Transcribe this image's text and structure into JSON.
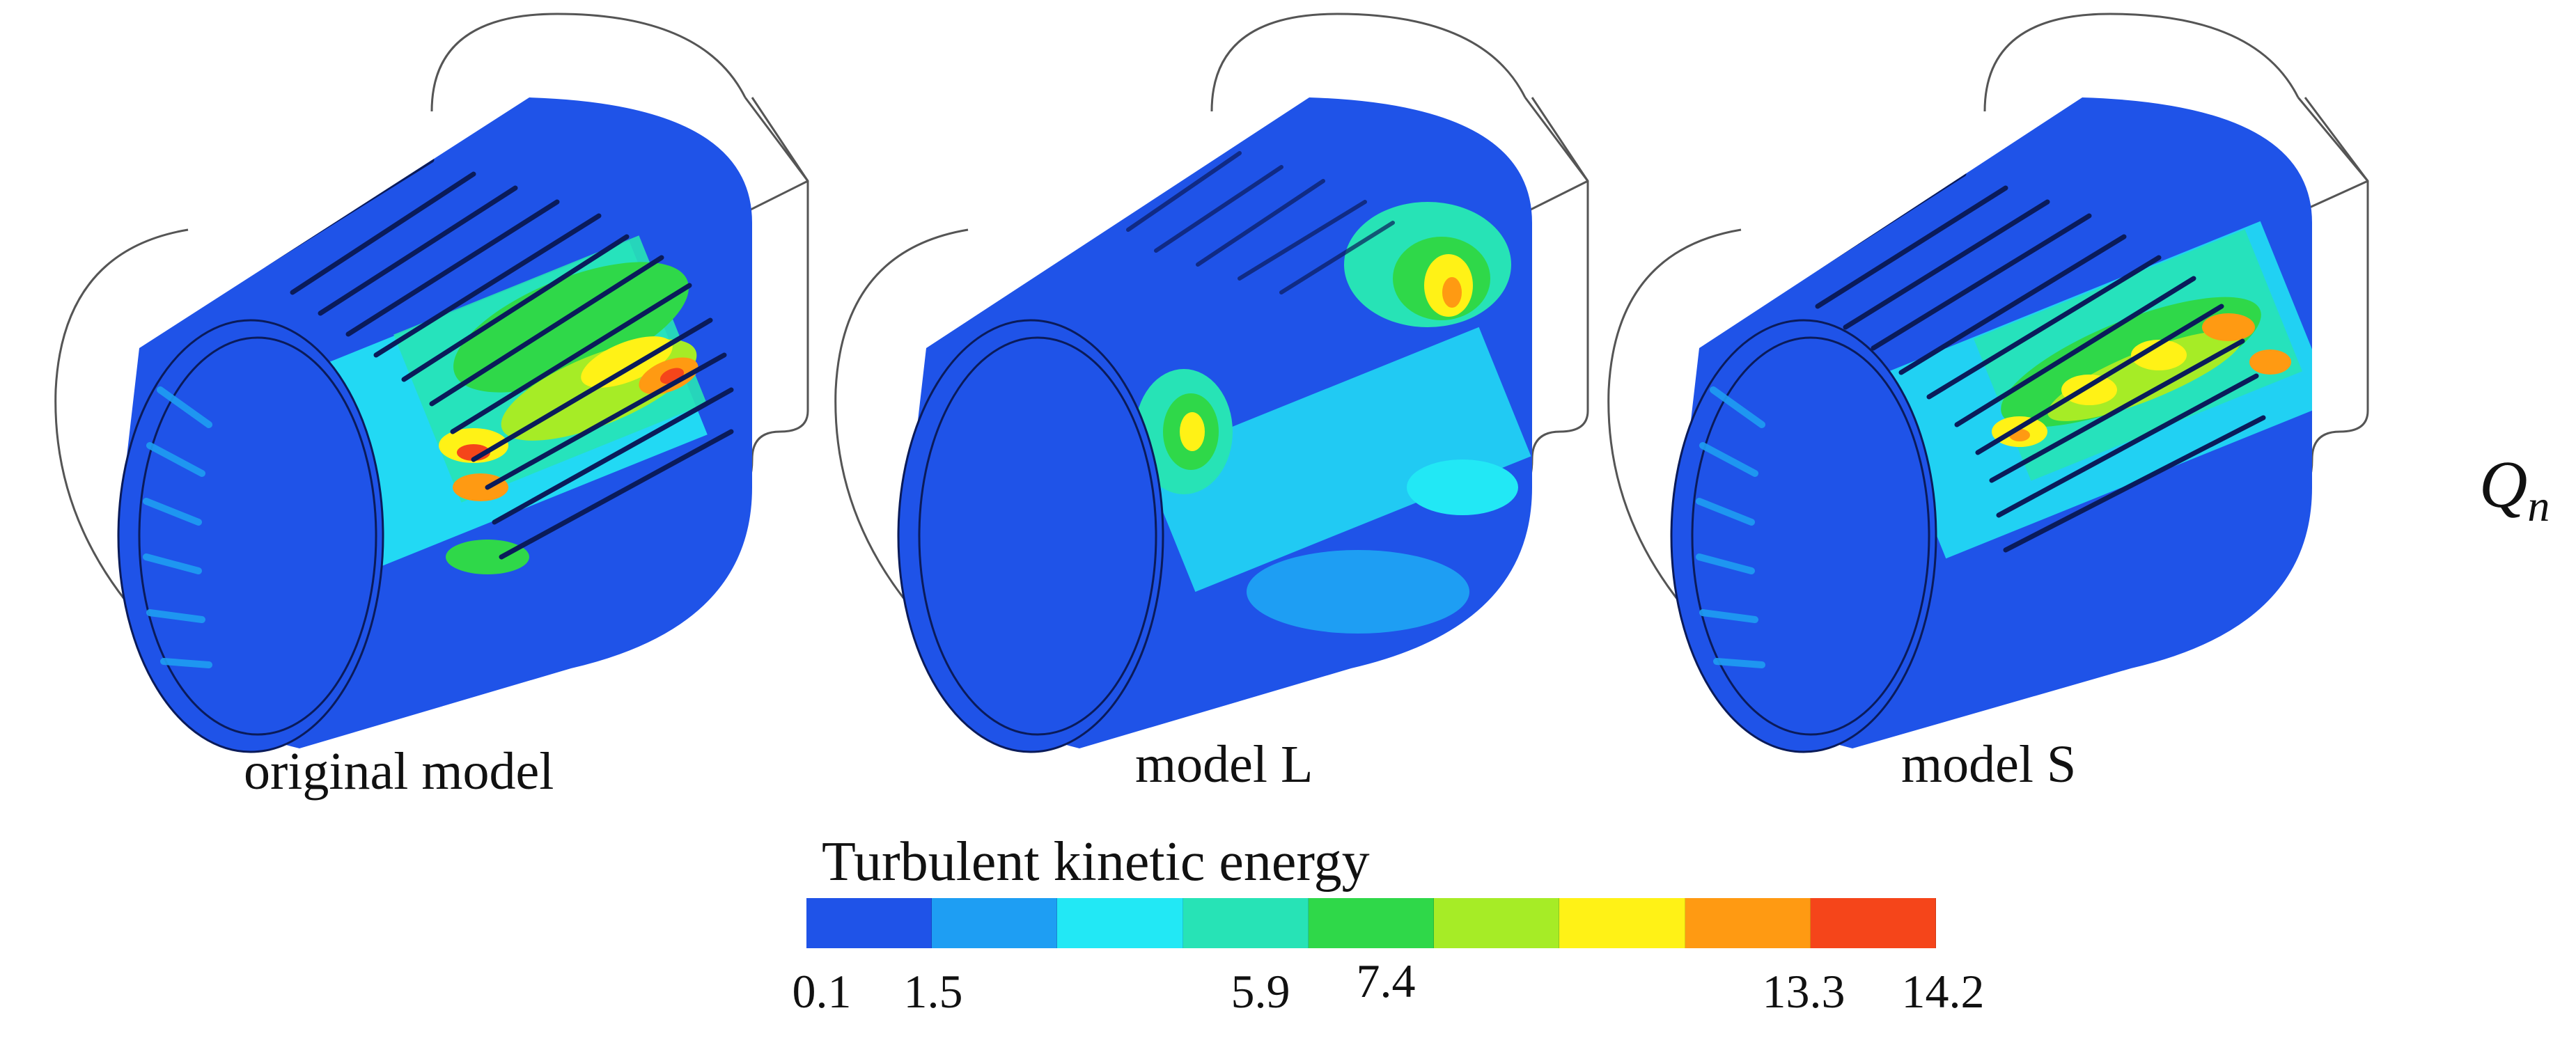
{
  "figure": {
    "panels": [
      {
        "id": "original",
        "caption": "original model"
      },
      {
        "id": "L",
        "caption": "model L"
      },
      {
        "id": "S",
        "caption": "model S"
      }
    ],
    "side_label": {
      "base": "Q",
      "subscript": "n"
    },
    "colorbar": {
      "title": "Turbulent kinetic energy",
      "colors": [
        "#1f53e8",
        "#1e9ef3",
        "#22e8f5",
        "#27e3b6",
        "#2fd849",
        "#a6ec26",
        "#fff216",
        "#ff9a12",
        "#f5451a"
      ],
      "tick_labels": [
        "0.1",
        "1.5",
        "5.9",
        "7.4",
        "13.3",
        "14.2"
      ]
    }
  }
}
